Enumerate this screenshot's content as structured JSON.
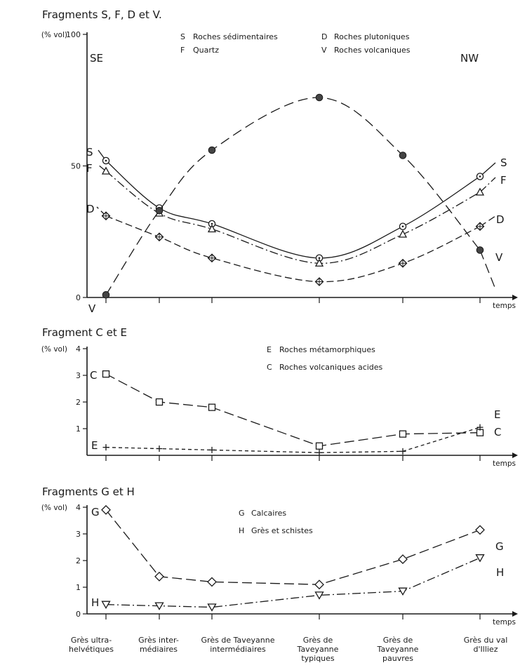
{
  "chart_data": [
    {
      "type": "line",
      "title": "Fragments S, F, D et V.",
      "ylabel": "(% vol)",
      "xlabel": "temps",
      "ylim": [
        0,
        100
      ],
      "yticks": [
        "0",
        "50",
        "100"
      ],
      "side_labels": {
        "left": "SE",
        "right": "NW"
      },
      "legend": [
        {
          "key": "S",
          "text": "Roches sédimentaires"
        },
        {
          "key": "D",
          "text": "Roches plutoniques"
        },
        {
          "key": "F",
          "text": "Quartz"
        },
        {
          "key": "V",
          "text": "Roches volcaniques"
        }
      ],
      "series": [
        {
          "name": "S",
          "values": [
            52,
            34,
            28,
            15,
            27,
            46
          ]
        },
        {
          "name": "F",
          "values": [
            48,
            32,
            26,
            13,
            24,
            40
          ]
        },
        {
          "name": "D",
          "values": [
            31,
            23,
            15,
            6,
            13,
            27
          ]
        },
        {
          "name": "V",
          "values": [
            1,
            33,
            56,
            76,
            54,
            18
          ]
        }
      ]
    },
    {
      "type": "line",
      "title": "Fragment C et E",
      "ylabel": "(% vol)",
      "xlabel": "temps",
      "ylim": [
        0,
        4
      ],
      "yticks": [
        "1",
        "2",
        "3",
        "4"
      ],
      "legend": [
        {
          "key": "E",
          "text": "Roches métamorphiques"
        },
        {
          "key": "C",
          "text": "Roches volcaniques acides"
        }
      ],
      "series": [
        {
          "name": "C",
          "values": [
            3.05,
            2.0,
            1.8,
            0.35,
            0.8,
            0.85
          ]
        },
        {
          "name": "E",
          "values": [
            0.3,
            0.25,
            0.2,
            0.1,
            0.15,
            1.05
          ]
        }
      ]
    },
    {
      "type": "line",
      "title": "Fragments G et H",
      "ylabel": "(% vol)",
      "xlabel": "temps",
      "ylim": [
        0,
        4
      ],
      "yticks": [
        "0",
        "1",
        "2",
        "3",
        "4"
      ],
      "legend": [
        {
          "key": "G",
          "text": "Calcaires"
        },
        {
          "key": "H",
          "text": "Grès et schistes"
        }
      ],
      "series": [
        {
          "name": "G",
          "values": [
            3.9,
            1.4,
            1.2,
            1.1,
            2.05,
            3.15
          ]
        },
        {
          "name": "H",
          "values": [
            0.35,
            0.3,
            0.25,
            0.7,
            0.85,
            2.1
          ]
        }
      ],
      "categories": [
        "Grès ultra- helvétiques",
        "Grès inter- médiaires",
        "Grès de Taveyanne intermédiaires",
        "Grès de Taveyanne typiques",
        "Grès de Taveyanne pauvres",
        "Grès du val d'Illiez"
      ]
    }
  ]
}
